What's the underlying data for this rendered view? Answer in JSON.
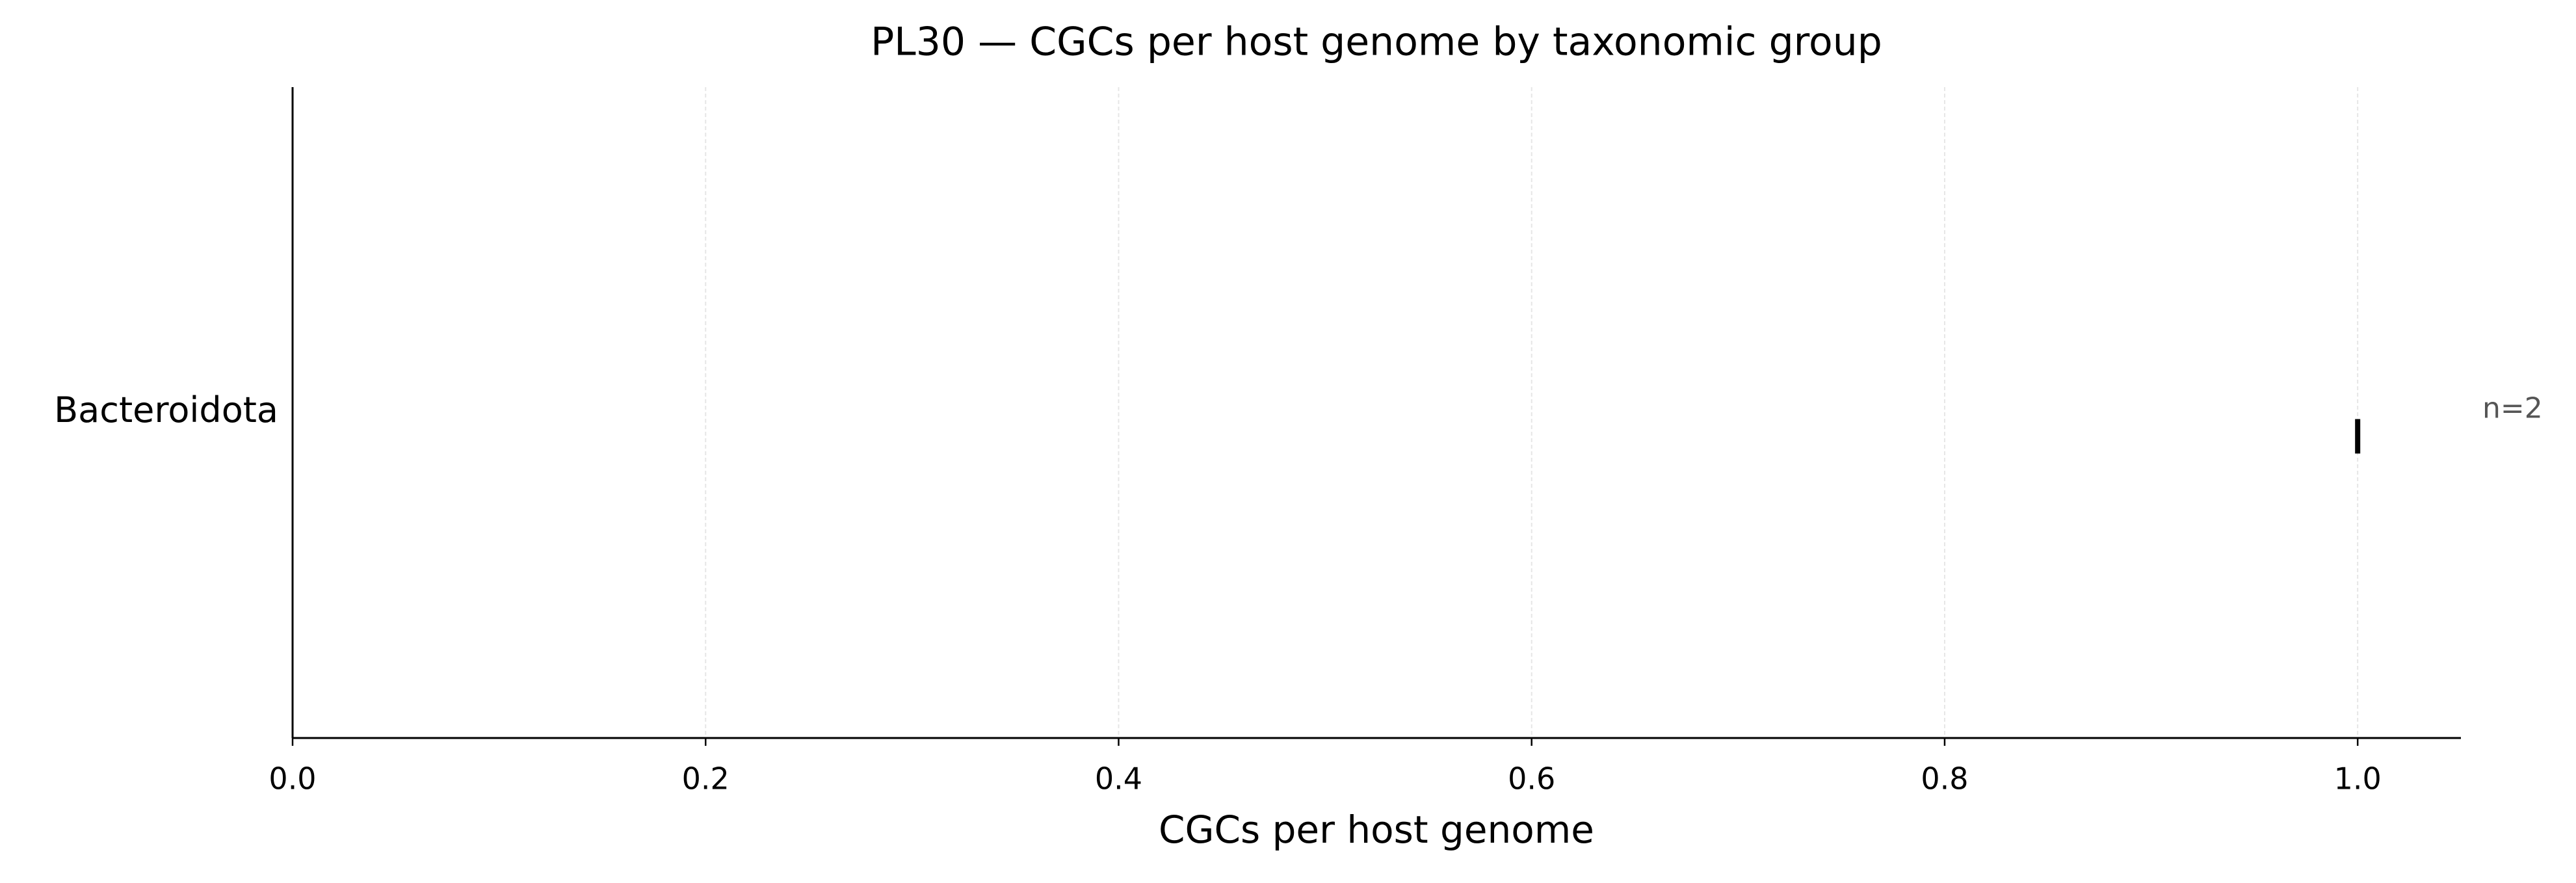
{
  "chart_data": {
    "type": "box",
    "title": "PL30 — CGCs per host genome by taxonomic group",
    "xlabel": "CGCs per host genome",
    "categories": [
      "Bacteroidota"
    ],
    "values": [
      1.0
    ],
    "annotations": [
      "n=2"
    ],
    "color": "#000000",
    "xlim": [
      0,
      1.05
    ],
    "xticks": [
      {
        "value": 0,
        "label": "0.0"
      },
      0.2,
      0.4,
      0.6,
      0.8,
      {
        "value": 1,
        "label": "1.0"
      }
    ],
    "grid": true
  }
}
